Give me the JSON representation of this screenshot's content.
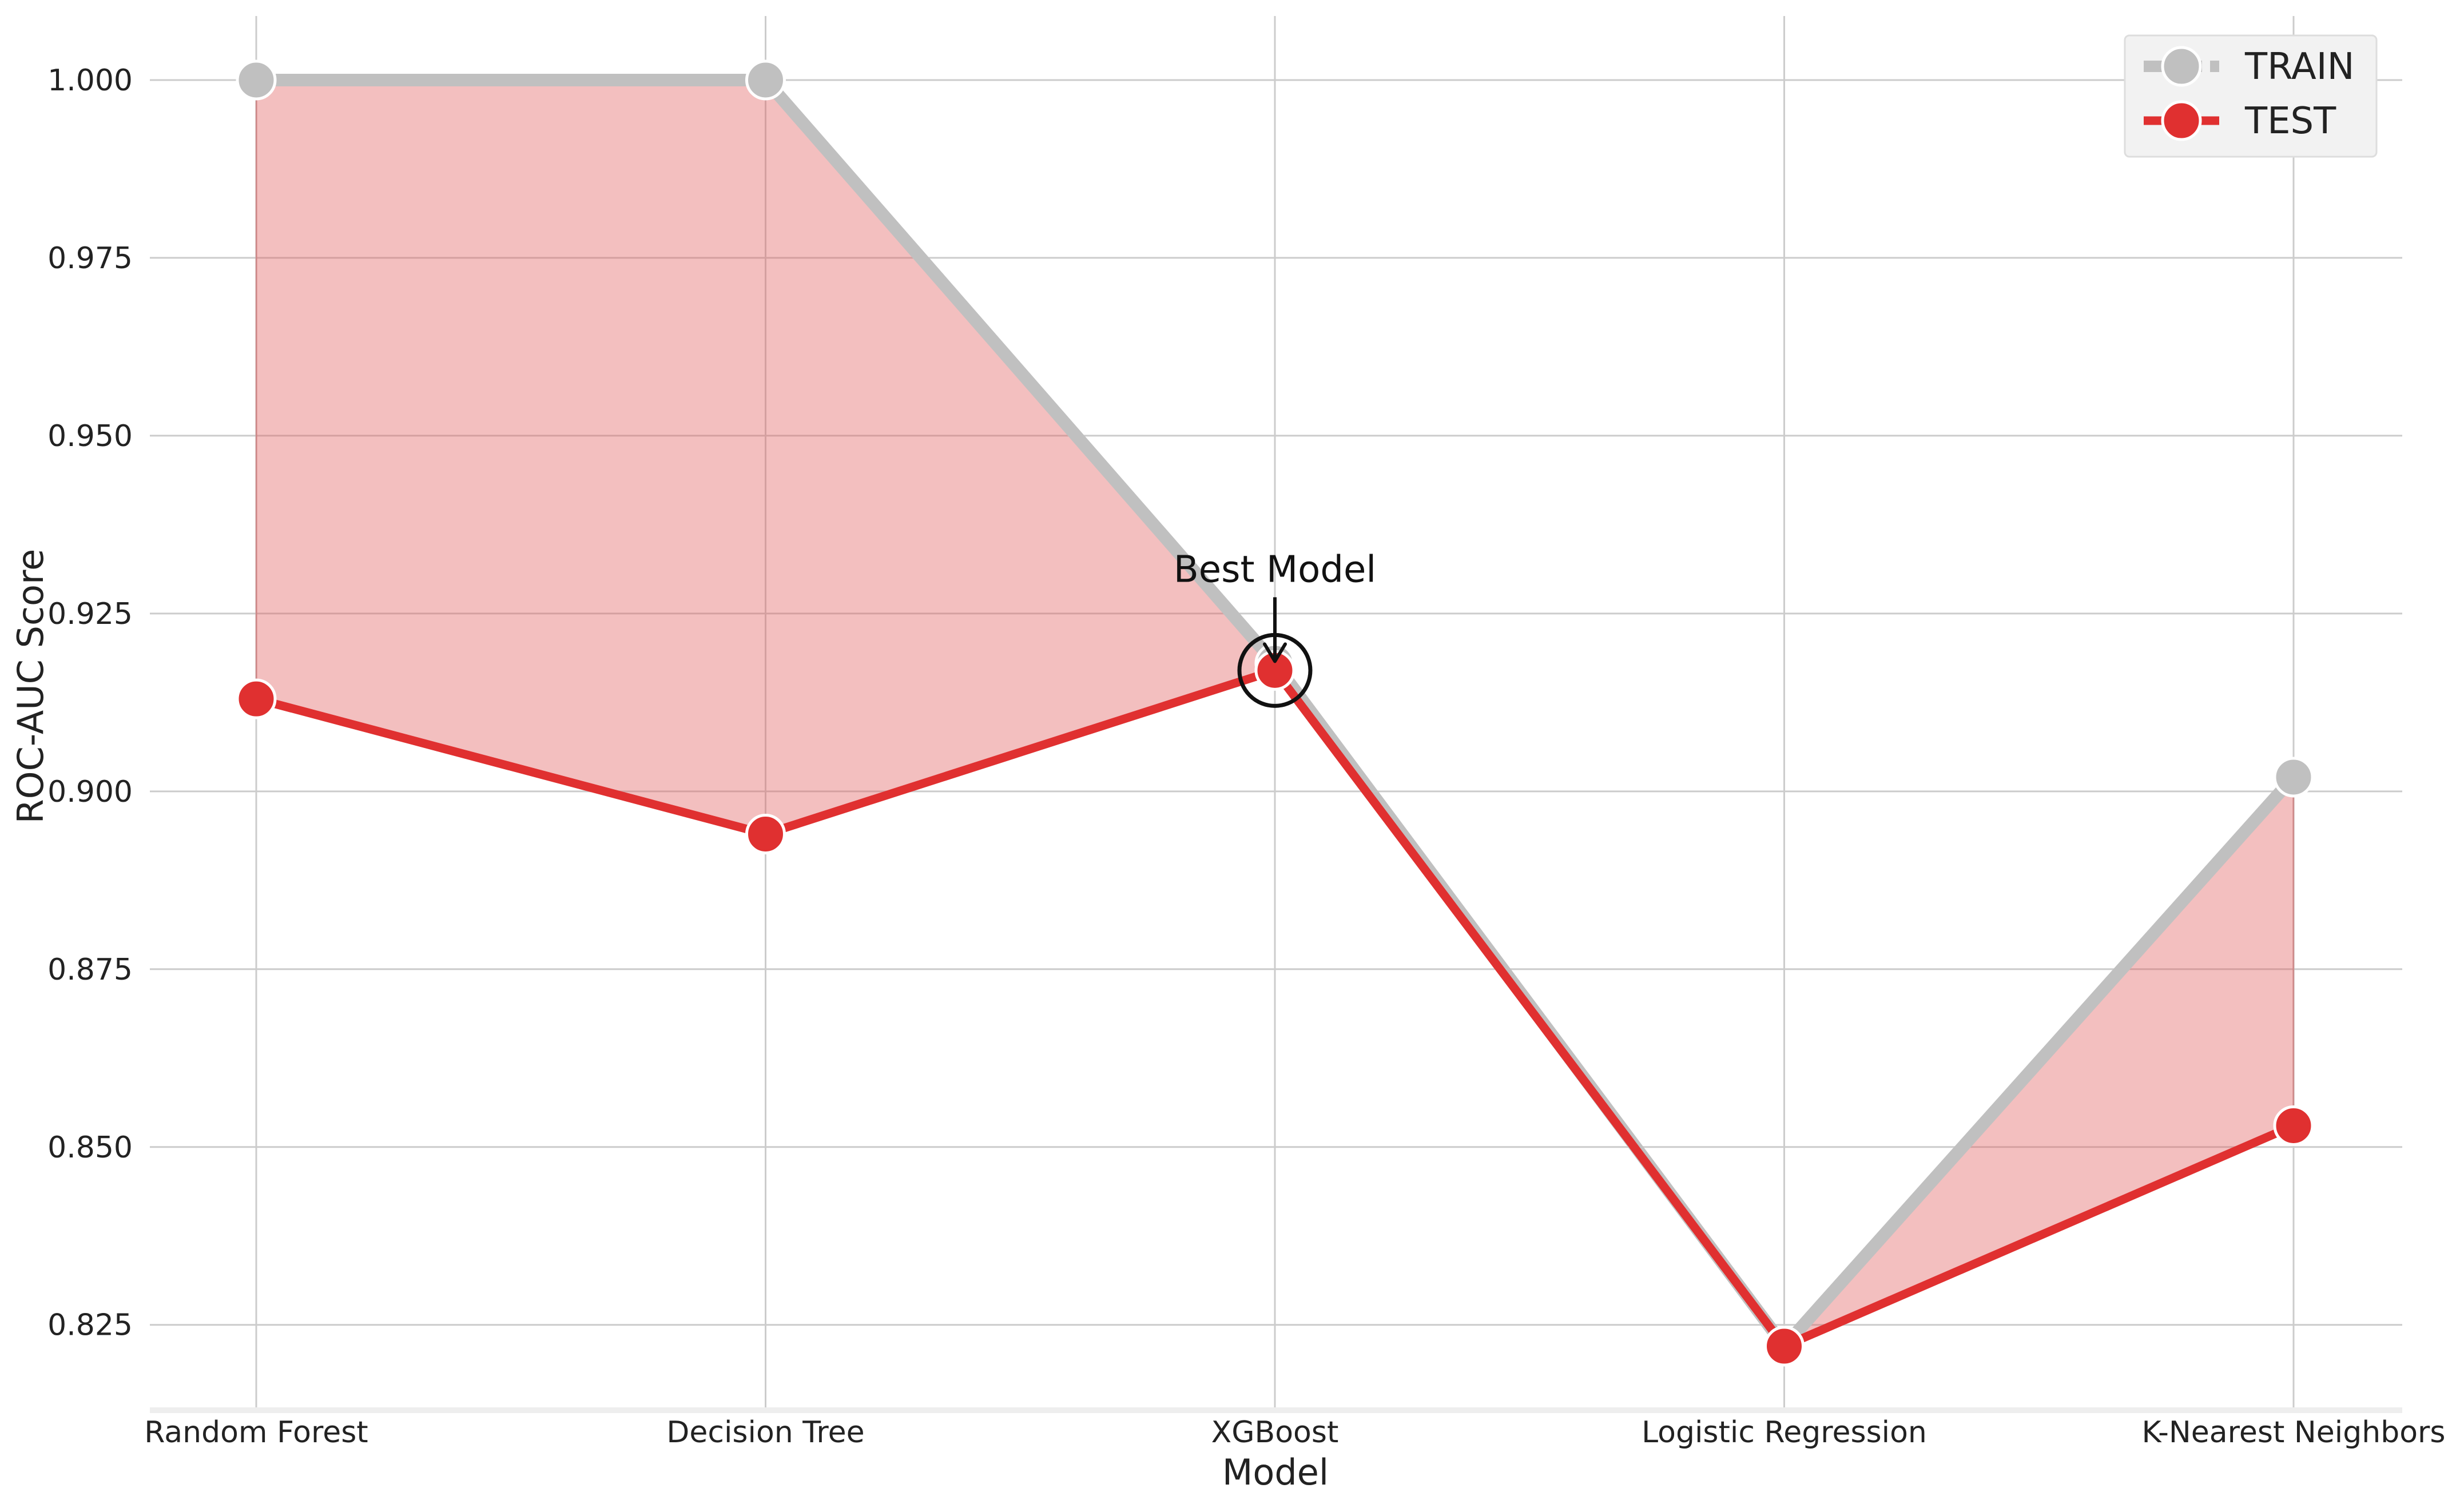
{
  "chart_data": {
    "type": "line",
    "xlabel": "Model",
    "ylabel": "ROC-AUC Score",
    "categories": [
      "Random Forest",
      "Decision Tree",
      "XGBoost",
      "Logistic Regression",
      "K-Nearest Neighbors"
    ],
    "ylim": [
      0.813,
      1.009
    ],
    "yticks": [
      0.825,
      0.85,
      0.875,
      0.9,
      0.925,
      0.95,
      0.975,
      1.0
    ],
    "ytick_labels": [
      "0.825",
      "0.850",
      "0.875",
      "0.900",
      "0.925",
      "0.950",
      "0.975",
      "1.000"
    ],
    "grid": true,
    "legend_position": "top-right",
    "series": [
      {
        "name": "TRAIN",
        "color": "#c0c0c0",
        "values": [
          1.0,
          1.0,
          0.918,
          0.822,
          0.902
        ]
      },
      {
        "name": "TEST",
        "color": "#e03030",
        "values": [
          0.913,
          0.894,
          0.917,
          0.822,
          0.853
        ]
      }
    ],
    "fill_between": {
      "color": "#e06060"
    },
    "annotation": {
      "text": "Best Model",
      "category_index": 2,
      "series": "TEST"
    }
  }
}
